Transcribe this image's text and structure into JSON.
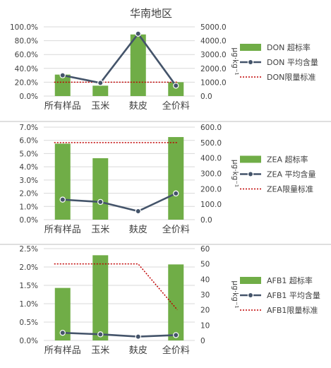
{
  "main_title": "华南地区",
  "y2_unit_label": "μg·kg⁻¹",
  "colors": {
    "bar": "#70AD47",
    "line": "#44546A",
    "limit": "#C00000",
    "axis_text": "#404040",
    "grid": "#D9D9D9",
    "divider": "#BFBFBF"
  },
  "chart_data": [
    {
      "type": "bar",
      "title": "华南地区",
      "categories": [
        "所有样品",
        "玉米",
        "麸皮",
        "全价料"
      ],
      "y1_ticks": [
        "0.0%",
        "20.0%",
        "40.0%",
        "60.0%",
        "80.0%",
        "100.0%"
      ],
      "y1lim": [
        0,
        100
      ],
      "y2_ticks": [
        "0.0",
        "1000.0",
        "2000.0",
        "3000.0",
        "4000.0",
        "5000.0"
      ],
      "y2lim": [
        0,
        5000
      ],
      "y2label": "μg·kg⁻¹",
      "bar_series": {
        "name": "DON 超标率",
        "values": [
          31,
          15,
          89,
          20
        ]
      },
      "line_series": {
        "name": "DON 平均含量",
        "values": [
          1500,
          950,
          4500,
          750
        ]
      },
      "limit_series": {
        "name": "DON限量标准",
        "values": [
          1000,
          1000,
          1000,
          1000
        ]
      },
      "legend": [
        "DON 超标率",
        "DON 平均含量",
        "DON限量标准"
      ],
      "legend_position": "right"
    },
    {
      "type": "bar",
      "title": "",
      "categories": [
        "所有样品",
        "玉米",
        "麸皮",
        "全价料"
      ],
      "y1_ticks": [
        "0.0%",
        "1.0%",
        "2.0%",
        "3.0%",
        "4.0%",
        "5.0%",
        "6.0%",
        "7.0%"
      ],
      "y1lim": [
        0,
        7
      ],
      "y2_ticks": [
        "0.0",
        "100.0",
        "200.0",
        "300.0",
        "400.0",
        "500.0",
        "600.0"
      ],
      "y2lim": [
        0,
        600
      ],
      "y2label": "μg·kg⁻¹",
      "bar_series": {
        "name": "ZEA 超标率",
        "values": [
          5.75,
          4.65,
          0,
          6.25
        ]
      },
      "line_series": {
        "name": "ZEA 平均含量",
        "values": [
          130,
          115,
          55,
          170
        ]
      },
      "limit_series": {
        "name": "ZEA限量标准",
        "values": [
          500,
          500,
          500,
          500
        ]
      },
      "legend": [
        "ZEA 超标率",
        "ZEA 平均含量",
        "ZEA限量标准"
      ],
      "legend_position": "right"
    },
    {
      "type": "bar",
      "title": "",
      "categories": [
        "所有样品",
        "玉米",
        "麸皮",
        "全价料"
      ],
      "y1_ticks": [
        "0.0%",
        "0.5%",
        "1.0%",
        "1.5%",
        "2.0%",
        "2.5%"
      ],
      "y1lim": [
        0,
        2.5
      ],
      "y2_ticks": [
        "0",
        "10",
        "20",
        "30",
        "40",
        "50",
        "60"
      ],
      "y2lim": [
        0,
        60
      ],
      "y2label": "μg·kg⁻¹",
      "bar_series": {
        "name": "AFB1 超标率",
        "values": [
          1.43,
          2.32,
          0,
          2.07
        ]
      },
      "line_series": {
        "name": "AFB1 平均含量",
        "values": [
          5,
          4,
          2.5,
          3.5
        ]
      },
      "limit_series": {
        "name": "AFB1限量标准",
        "values": [
          50,
          50,
          50,
          20
        ]
      },
      "legend": [
        "AFB1 超标率",
        "AFB1 平均含量",
        "AFB1限量标准"
      ],
      "legend_position": "right"
    }
  ]
}
